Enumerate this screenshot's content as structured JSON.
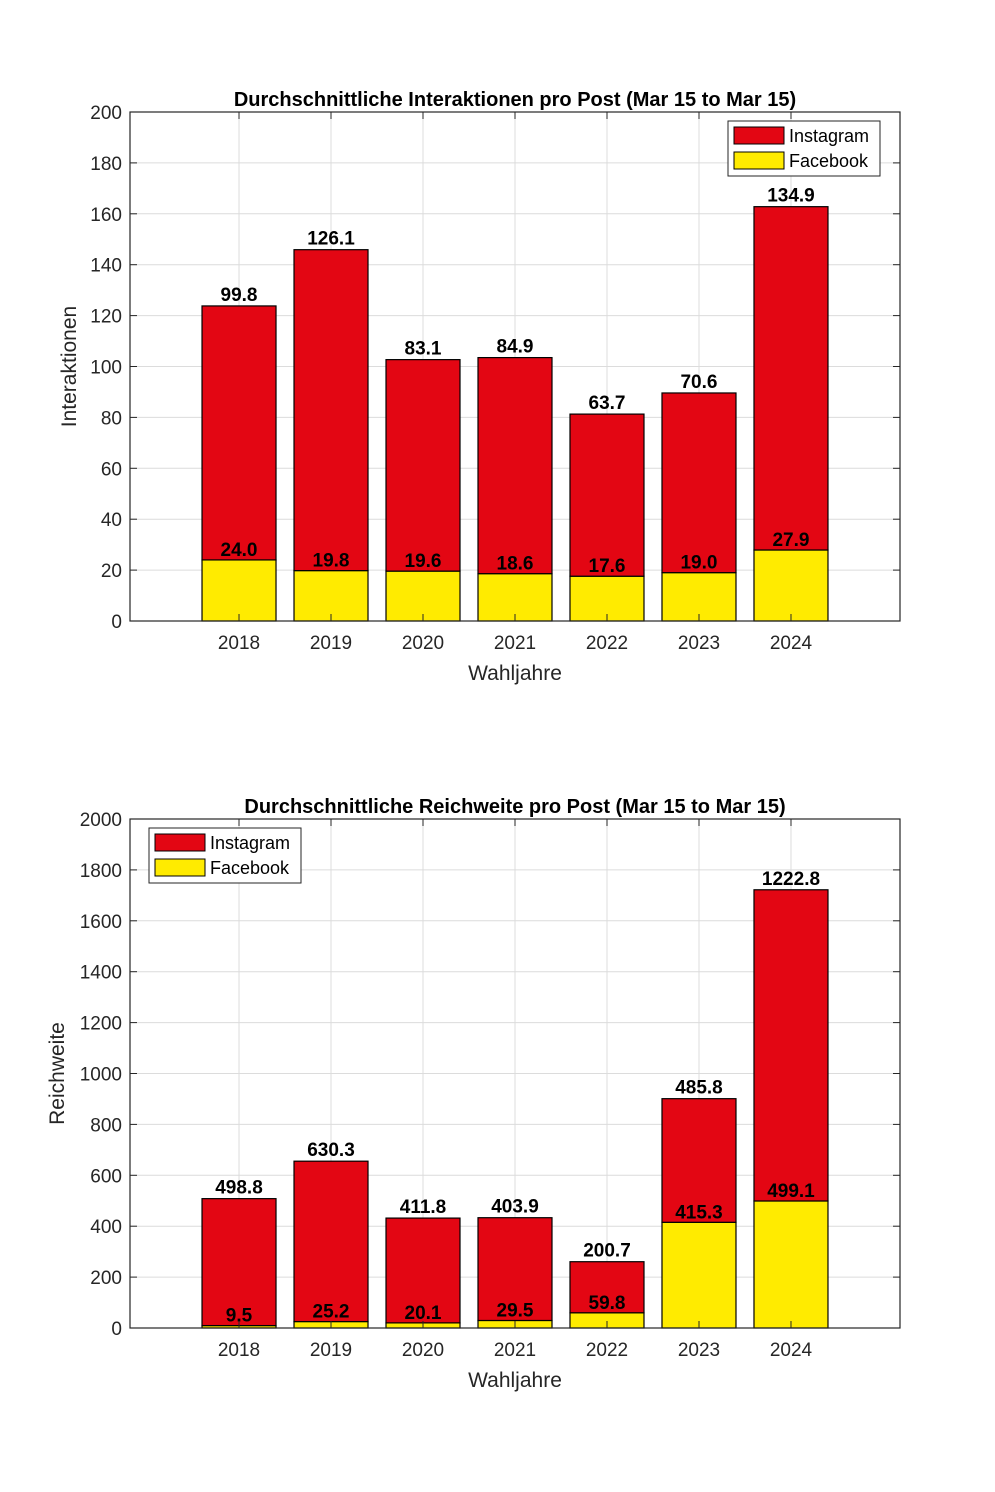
{
  "chart_data": [
    {
      "type": "bar",
      "stacked": true,
      "title": "Durchschnittliche Interaktionen pro Post (Mar 15 to Mar 15)",
      "xlabel": "Wahljahre",
      "ylabel": "Interaktionen",
      "categories": [
        "2018",
        "2019",
        "2020",
        "2021",
        "2022",
        "2023",
        "2024"
      ],
      "ylim": [
        0,
        200
      ],
      "yticks": [
        0,
        20,
        40,
        60,
        80,
        100,
        120,
        140,
        160,
        180,
        200
      ],
      "grid": true,
      "legend_position": "top-right",
      "series": [
        {
          "name": "Facebook",
          "color": "#FFEB00",
          "values": [
            24.0,
            19.8,
            19.6,
            18.6,
            17.6,
            19.0,
            27.9
          ],
          "labels": [
            "24.0",
            "19.8",
            "19.6",
            "18.6",
            "17.6",
            "19.0",
            "27.9"
          ]
        },
        {
          "name": "Instagram",
          "color": "#E30613",
          "values": [
            99.8,
            126.1,
            83.1,
            84.9,
            63.7,
            70.6,
            134.9
          ],
          "labels": [
            "99.8",
            "126.1",
            "83.1",
            "84.9",
            "63.7",
            "70.6",
            "134.9"
          ]
        }
      ],
      "legend": [
        "Instagram",
        "Facebook"
      ]
    },
    {
      "type": "bar",
      "stacked": true,
      "title": "Durchschnittliche Reichweite pro Post (Mar 15 to Mar 15)",
      "xlabel": "Wahljahre",
      "ylabel": "Reichweite",
      "categories": [
        "2018",
        "2019",
        "2020",
        "2021",
        "2022",
        "2023",
        "2024"
      ],
      "ylim": [
        0,
        2000
      ],
      "yticks": [
        0,
        200,
        400,
        600,
        800,
        1000,
        1200,
        1400,
        1600,
        1800,
        2000
      ],
      "grid": true,
      "legend_position": "top-left",
      "series": [
        {
          "name": "Facebook",
          "color": "#FFEB00",
          "values": [
            9.5,
            25.2,
            20.1,
            29.5,
            59.8,
            415.3,
            499.1
          ],
          "labels": [
            "9.5",
            "25.2",
            "20.1",
            "29.5",
            "59.8",
            "415.3",
            "499.1"
          ]
        },
        {
          "name": "Instagram",
          "color": "#E30613",
          "values": [
            498.8,
            630.3,
            411.8,
            403.9,
            200.7,
            485.8,
            1222.8
          ],
          "labels": [
            "498.8",
            "630.3",
            "411.8",
            "403.9",
            "200.7",
            "485.8",
            "1222.8"
          ]
        }
      ],
      "legend": [
        "Instagram",
        "Facebook"
      ]
    }
  ]
}
